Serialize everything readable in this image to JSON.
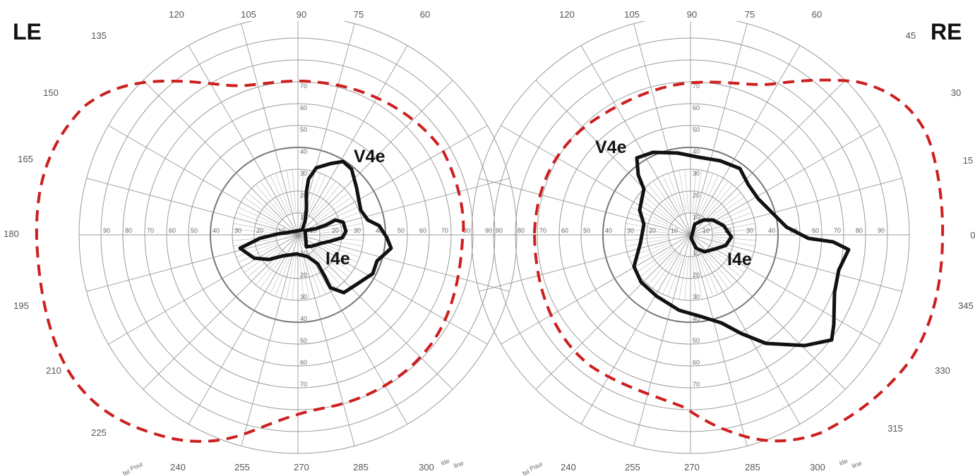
{
  "fields": [
    {
      "eye": "LE",
      "meridian_labels": [
        "120",
        "105",
        "90",
        "75",
        "60",
        "135",
        "150",
        "165",
        "180",
        "195",
        "210",
        "225",
        "240",
        "255",
        "270",
        "285",
        "300"
      ],
      "isopters": [
        {
          "name": "V4e",
          "style": "solid",
          "color": "#111111"
        },
        {
          "name": "I4e",
          "style": "solid",
          "color": "#111111"
        },
        {
          "name": "peripheral",
          "style": "dashed",
          "color": "#cc1f1f"
        }
      ]
    },
    {
      "eye": "RE",
      "meridian_labels": [
        "120",
        "105",
        "90",
        "75",
        "60",
        "45",
        "30",
        "15",
        "0",
        "345",
        "330",
        "315",
        "240",
        "255",
        "270",
        "285",
        "300"
      ],
      "isopters": [
        {
          "name": "V4e",
          "style": "solid",
          "color": "#111111"
        },
        {
          "name": "I4e",
          "style": "solid",
          "color": "#111111"
        },
        {
          "name": "peripheral",
          "style": "dashed",
          "color": "#cc1f1f"
        }
      ]
    }
  ],
  "eccentricity_labels": [
    "10",
    "20",
    "30",
    "40",
    "50",
    "60",
    "70",
    "80",
    "90"
  ],
  "edge_notes": [
    "Pour",
    "fel",
    "ide",
    "line"
  ],
  "colors": {
    "grid": "#9a9a9a",
    "isopter": "#111111",
    "peripheral_isopter": "#cc1f1f"
  }
}
